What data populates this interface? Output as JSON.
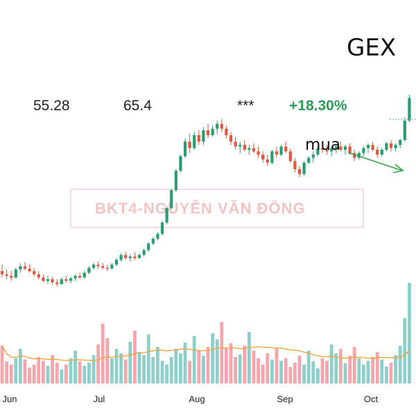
{
  "header": {
    "ticker": "GEX",
    "stat_1": "55.28",
    "stat_2": "65.4",
    "stat_3": "***",
    "change": "+18.30%"
  },
  "annotation": {
    "text": "mua"
  },
  "watermark": {
    "text": "BKT4-NGUYỄN VĂN ĐỒNG"
  },
  "colors": {
    "up": "#2a9d6f",
    "down": "#e0583f",
    "vol_up": "#8ecfcc",
    "vol_down": "#f4a6ac",
    "ma": "#f3a53c",
    "arrow": "#3aa34a"
  },
  "chart_data": {
    "type": "candlestick",
    "title": "GEX",
    "x_labels": [
      "Jun",
      "Jul",
      "Aug",
      "Sep",
      "Oct"
    ],
    "grid": false,
    "price_range": [
      20,
      50
    ],
    "candles": [
      {
        "o": 30.2,
        "h": 31.0,
        "l": 29.4,
        "c": 29.8
      },
      {
        "o": 29.8,
        "h": 30.4,
        "l": 29.2,
        "c": 29.6
      },
      {
        "o": 29.6,
        "h": 30.2,
        "l": 29.0,
        "c": 29.4
      },
      {
        "o": 29.4,
        "h": 30.6,
        "l": 29.3,
        "c": 30.4
      },
      {
        "o": 30.4,
        "h": 31.2,
        "l": 30.0,
        "c": 30.8
      },
      {
        "o": 30.8,
        "h": 31.3,
        "l": 30.3,
        "c": 30.5
      },
      {
        "o": 30.5,
        "h": 31.0,
        "l": 30.0,
        "c": 30.2
      },
      {
        "o": 30.2,
        "h": 30.6,
        "l": 29.6,
        "c": 29.8
      },
      {
        "o": 29.8,
        "h": 30.2,
        "l": 29.2,
        "c": 29.4
      },
      {
        "o": 29.4,
        "h": 29.8,
        "l": 28.8,
        "c": 29.0
      },
      {
        "o": 29.0,
        "h": 29.6,
        "l": 28.6,
        "c": 29.2
      },
      {
        "o": 29.2,
        "h": 29.5,
        "l": 28.5,
        "c": 28.8
      },
      {
        "o": 28.8,
        "h": 29.2,
        "l": 28.3,
        "c": 28.6
      },
      {
        "o": 28.6,
        "h": 29.4,
        "l": 28.5,
        "c": 29.2
      },
      {
        "o": 29.2,
        "h": 29.6,
        "l": 28.8,
        "c": 29.0
      },
      {
        "o": 29.0,
        "h": 29.5,
        "l": 28.7,
        "c": 29.3
      },
      {
        "o": 29.3,
        "h": 29.8,
        "l": 29.0,
        "c": 29.6
      },
      {
        "o": 29.6,
        "h": 30.0,
        "l": 29.2,
        "c": 29.4
      },
      {
        "o": 29.4,
        "h": 30.2,
        "l": 29.3,
        "c": 30.0
      },
      {
        "o": 30.0,
        "h": 30.8,
        "l": 29.8,
        "c": 30.6
      },
      {
        "o": 30.6,
        "h": 31.2,
        "l": 30.4,
        "c": 31.0
      },
      {
        "o": 31.0,
        "h": 31.4,
        "l": 30.5,
        "c": 30.8
      },
      {
        "o": 30.8,
        "h": 31.2,
        "l": 30.4,
        "c": 30.6
      },
      {
        "o": 30.6,
        "h": 31.0,
        "l": 30.2,
        "c": 30.5
      },
      {
        "o": 30.5,
        "h": 31.2,
        "l": 30.4,
        "c": 31.0
      },
      {
        "o": 31.0,
        "h": 31.8,
        "l": 30.8,
        "c": 31.6
      },
      {
        "o": 31.6,
        "h": 32.4,
        "l": 31.4,
        "c": 32.2
      },
      {
        "o": 32.2,
        "h": 32.6,
        "l": 31.6,
        "c": 31.8
      },
      {
        "o": 31.8,
        "h": 32.3,
        "l": 31.4,
        "c": 32.0
      },
      {
        "o": 32.0,
        "h": 32.5,
        "l": 31.6,
        "c": 31.8
      },
      {
        "o": 31.8,
        "h": 32.4,
        "l": 31.7,
        "c": 32.2
      },
      {
        "o": 32.2,
        "h": 33.0,
        "l": 32.0,
        "c": 32.8
      },
      {
        "o": 32.8,
        "h": 33.8,
        "l": 32.6,
        "c": 33.6
      },
      {
        "o": 33.6,
        "h": 34.4,
        "l": 33.4,
        "c": 34.2
      },
      {
        "o": 34.2,
        "h": 35.0,
        "l": 34.0,
        "c": 34.8
      },
      {
        "o": 34.8,
        "h": 36.4,
        "l": 34.6,
        "c": 36.2
      },
      {
        "o": 36.2,
        "h": 38.2,
        "l": 36.0,
        "c": 38.0
      },
      {
        "o": 38.0,
        "h": 40.4,
        "l": 37.8,
        "c": 40.2
      },
      {
        "o": 40.2,
        "h": 42.8,
        "l": 40.0,
        "c": 42.6
      },
      {
        "o": 42.6,
        "h": 44.6,
        "l": 42.4,
        "c": 44.4
      },
      {
        "o": 44.4,
        "h": 46.6,
        "l": 44.2,
        "c": 46.2
      },
      {
        "o": 46.2,
        "h": 47.2,
        "l": 44.8,
        "c": 45.4
      },
      {
        "o": 45.4,
        "h": 47.4,
        "l": 45.2,
        "c": 47.0
      },
      {
        "o": 47.0,
        "h": 47.6,
        "l": 45.8,
        "c": 46.2
      },
      {
        "o": 46.2,
        "h": 48.0,
        "l": 45.8,
        "c": 47.6
      },
      {
        "o": 47.6,
        "h": 48.4,
        "l": 46.6,
        "c": 47.0
      },
      {
        "o": 47.0,
        "h": 48.2,
        "l": 46.8,
        "c": 47.8
      },
      {
        "o": 47.8,
        "h": 48.8,
        "l": 47.2,
        "c": 48.4
      },
      {
        "o": 48.4,
        "h": 49.0,
        "l": 47.4,
        "c": 47.8
      },
      {
        "o": 47.8,
        "h": 48.2,
        "l": 46.6,
        "c": 47.0
      },
      {
        "o": 47.0,
        "h": 47.4,
        "l": 45.8,
        "c": 46.2
      },
      {
        "o": 46.2,
        "h": 46.8,
        "l": 45.2,
        "c": 45.6
      },
      {
        "o": 45.6,
        "h": 46.2,
        "l": 44.8,
        "c": 45.8
      },
      {
        "o": 45.8,
        "h": 46.4,
        "l": 45.0,
        "c": 45.2
      },
      {
        "o": 45.2,
        "h": 45.8,
        "l": 44.6,
        "c": 45.4
      },
      {
        "o": 45.4,
        "h": 46.0,
        "l": 44.8,
        "c": 45.0
      },
      {
        "o": 45.0,
        "h": 45.6,
        "l": 44.2,
        "c": 44.6
      },
      {
        "o": 44.6,
        "h": 45.0,
        "l": 43.6,
        "c": 44.0
      },
      {
        "o": 44.0,
        "h": 44.6,
        "l": 43.2,
        "c": 43.6
      },
      {
        "o": 43.6,
        "h": 45.2,
        "l": 43.4,
        "c": 45.0
      },
      {
        "o": 45.0,
        "h": 45.6,
        "l": 44.2,
        "c": 44.6
      },
      {
        "o": 44.6,
        "h": 45.8,
        "l": 44.4,
        "c": 45.6
      },
      {
        "o": 45.6,
        "h": 46.2,
        "l": 44.8,
        "c": 45.0
      },
      {
        "o": 45.0,
        "h": 45.4,
        "l": 43.6,
        "c": 43.8
      },
      {
        "o": 43.8,
        "h": 44.2,
        "l": 42.4,
        "c": 42.8
      },
      {
        "o": 42.8,
        "h": 43.2,
        "l": 41.8,
        "c": 42.2
      },
      {
        "o": 42.2,
        "h": 43.8,
        "l": 42.0,
        "c": 43.6
      },
      {
        "o": 43.6,
        "h": 44.4,
        "l": 43.4,
        "c": 44.2
      },
      {
        "o": 44.2,
        "h": 45.0,
        "l": 43.6,
        "c": 44.6
      },
      {
        "o": 44.6,
        "h": 45.6,
        "l": 44.4,
        "c": 45.4
      },
      {
        "o": 45.4,
        "h": 46.0,
        "l": 44.8,
        "c": 45.2
      },
      {
        "o": 45.2,
        "h": 45.8,
        "l": 44.6,
        "c": 45.0
      },
      {
        "o": 45.0,
        "h": 45.6,
        "l": 44.4,
        "c": 45.4
      },
      {
        "o": 45.4,
        "h": 46.0,
        "l": 44.8,
        "c": 45.6
      },
      {
        "o": 45.6,
        "h": 46.2,
        "l": 45.0,
        "c": 45.2
      },
      {
        "o": 45.2,
        "h": 45.8,
        "l": 44.6,
        "c": 45.6
      },
      {
        "o": 45.6,
        "h": 46.0,
        "l": 44.6,
        "c": 44.8
      },
      {
        "o": 44.8,
        "h": 45.2,
        "l": 43.8,
        "c": 44.2
      },
      {
        "o": 44.2,
        "h": 45.0,
        "l": 44.0,
        "c": 44.8
      },
      {
        "o": 44.8,
        "h": 45.6,
        "l": 44.4,
        "c": 45.4
      },
      {
        "o": 45.4,
        "h": 46.0,
        "l": 44.8,
        "c": 45.8
      },
      {
        "o": 45.8,
        "h": 46.2,
        "l": 45.0,
        "c": 45.2
      },
      {
        "o": 45.2,
        "h": 45.6,
        "l": 44.2,
        "c": 44.6
      },
      {
        "o": 44.6,
        "h": 45.4,
        "l": 44.4,
        "c": 45.2
      },
      {
        "o": 45.2,
        "h": 46.2,
        "l": 45.0,
        "c": 46.0
      },
      {
        "o": 46.0,
        "h": 46.4,
        "l": 45.0,
        "c": 45.4
      },
      {
        "o": 45.4,
        "h": 46.0,
        "l": 45.0,
        "c": 45.8
      },
      {
        "o": 45.8,
        "h": 46.6,
        "l": 45.4,
        "c": 46.4
      },
      {
        "o": 46.4,
        "h": 49.2,
        "l": 46.2,
        "c": 48.8
      },
      {
        "o": 48.8,
        "h": 52.0,
        "l": 48.6,
        "c": 51.6
      }
    ],
    "volume": [
      60,
      35,
      30,
      40,
      55,
      38,
      25,
      30,
      42,
      36,
      28,
      45,
      33,
      22,
      30,
      40,
      52,
      35,
      28,
      33,
      45,
      62,
      95,
      72,
      40,
      55,
      48,
      38,
      66,
      84,
      50,
      45,
      78,
      42,
      58,
      36,
      30,
      42,
      55,
      48,
      65,
      36,
      75,
      52,
      44,
      58,
      80,
      70,
      98,
      56,
      64,
      42,
      46,
      60,
      82,
      52,
      40,
      30,
      48,
      38,
      55,
      36,
      40,
      26,
      33,
      44,
      30,
      52,
      35,
      24,
      40,
      36,
      62,
      48,
      55,
      32,
      44,
      58,
      40,
      30,
      36,
      42,
      50,
      38,
      27,
      33,
      45,
      60,
      104,
      160
    ],
    "volume_direction": "up_if_close_gte_open",
    "moving_average_volume": true,
    "last_volume_annotations": [
      "dotted-marker"
    ]
  }
}
